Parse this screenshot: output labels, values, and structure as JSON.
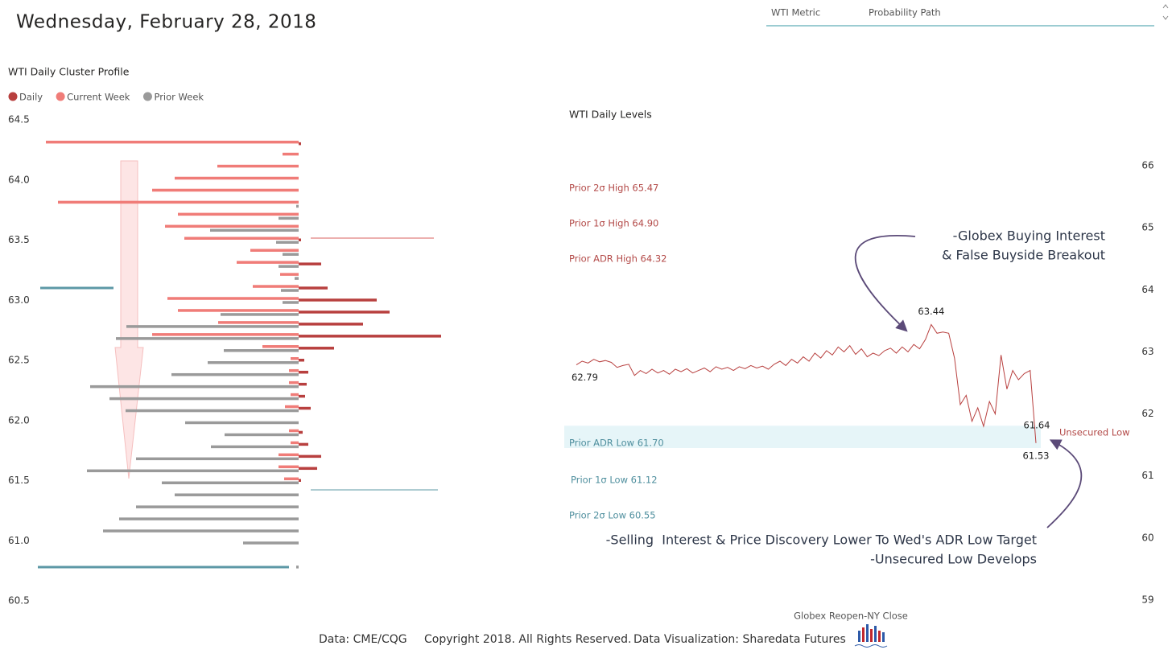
{
  "header": {
    "title": "Wednesday, February 28, 2018"
  },
  "tabs": [
    "WTI Metric",
    "Probability Path"
  ],
  "footer": [
    "Data: CME/CQG",
    "Copyright 2018. All Rights Reserved.",
    "Data Visualization: Sharedata Futures"
  ],
  "chart_data": [
    {
      "type": "profile",
      "title": "WTI Daily Cluster Profile",
      "levels": [
        64.3,
        64.2,
        64.1,
        64.0,
        63.9,
        63.8,
        63.7,
        63.6,
        63.5,
        63.4,
        63.3,
        63.2,
        63.1,
        63.0,
        62.9,
        62.8,
        62.7,
        62.6,
        62.5,
        62.4,
        62.3,
        62.2,
        62.1,
        62.0,
        61.9,
        61.8,
        61.7,
        61.6,
        61.5,
        61.4,
        61.3,
        61.2,
        61.1,
        61.0,
        60.9,
        60.8
      ],
      "series": [
        {
          "name": "Daily",
          "color": "#b8403f",
          "values": [
            3,
            null,
            null,
            null,
            null,
            null,
            null,
            null,
            3,
            null,
            28,
            null,
            36,
            97,
            113,
            80,
            177,
            44,
            7,
            12,
            10,
            8,
            15,
            null,
            5,
            12,
            28,
            23,
            3,
            null,
            null,
            null,
            null,
            null,
            null,
            null
          ]
        },
        {
          "name": "Current Week",
          "color": "#f07c78",
          "values": [
            314,
            20,
            101,
            154,
            182,
            299,
            150,
            166,
            142,
            60,
            77,
            23,
            57,
            163,
            150,
            100,
            182,
            45,
            10,
            12,
            12,
            10,
            17,
            null,
            12,
            10,
            25,
            25,
            18,
            null,
            null,
            null,
            null,
            null,
            null,
            null
          ]
        },
        {
          "name": "Prior Week",
          "color": "#9a9a9a",
          "values": [
            null,
            null,
            null,
            null,
            null,
            3,
            25,
            110,
            28,
            20,
            25,
            5,
            22,
            20,
            97,
            214,
            227,
            93,
            113,
            158,
            259,
            235,
            215,
            141,
            92,
            109,
            202,
            263,
            170,
            154,
            202,
            223,
            243,
            69,
            null,
            3
          ]
        }
      ],
      "xlim": [
        0,
        330
      ],
      "ylim": [
        60.5,
        64.5
      ],
      "yticks": [
        64.5,
        {
          "value": 64,
          "label": "64.0"
        },
        63.5,
        {
          "value": 63,
          "label": "63.0"
        },
        62.5,
        {
          "value": 62,
          "label": "62.0"
        },
        61.5,
        {
          "value": 61,
          "label": "61.0"
        },
        60.5
      ]
    },
    {
      "type": "line",
      "title": "WTI Daily Levels",
      "x_label": "Globex Reopen-NY Close",
      "color": "#b8403f",
      "values": [
        62.79,
        62.85,
        62.82,
        62.88,
        62.84,
        62.86,
        62.83,
        62.75,
        62.78,
        62.8,
        62.62,
        62.7,
        62.65,
        62.72,
        62.66,
        62.7,
        62.64,
        62.72,
        62.68,
        62.73,
        62.66,
        62.7,
        62.74,
        62.68,
        62.76,
        62.72,
        62.75,
        62.7,
        62.76,
        62.73,
        62.78,
        62.74,
        62.77,
        62.72,
        62.8,
        62.85,
        62.78,
        62.88,
        62.82,
        62.92,
        62.85,
        62.98,
        62.9,
        63.02,
        62.95,
        63.08,
        63.0,
        63.1,
        62.96,
        63.05,
        62.92,
        62.98,
        62.94,
        63.02,
        63.06,
        62.98,
        63.08,
        63.0,
        63.12,
        63.05,
        63.2,
        63.44,
        63.3,
        63.32,
        63.3,
        62.9,
        62.15,
        62.3,
        61.88,
        62.1,
        61.8,
        62.2,
        62.0,
        62.95,
        62.4,
        62.7,
        62.55,
        62.65,
        62.7,
        61.53
      ],
      "labeled_points": [
        0,
        61,
        79
      ],
      "zone": [
        61.45,
        61.81
      ],
      "ylim": [
        59,
        66
      ],
      "yticks": [
        59,
        60,
        61,
        62,
        63,
        64,
        65,
        66
      ],
      "levels_high": [
        "Prior 2σ High 65.47",
        "Prior 1σ High 64.90",
        "Prior ADR High 64.32"
      ],
      "levels_low": [
        "Prior ADR Low 61.70",
        "Prior 1σ Low 61.12",
        "Prior 2σ Low 60.55"
      ],
      "annotations": [
        "61.64",
        "Unsecured Low",
        "-Globex Buying Interest",
        "& False Buyside Breakout",
        "-Selling  Interest & Price Discovery Lower To Wed's ADR Low Target",
        "-Unsecured Low Develops"
      ]
    }
  ]
}
